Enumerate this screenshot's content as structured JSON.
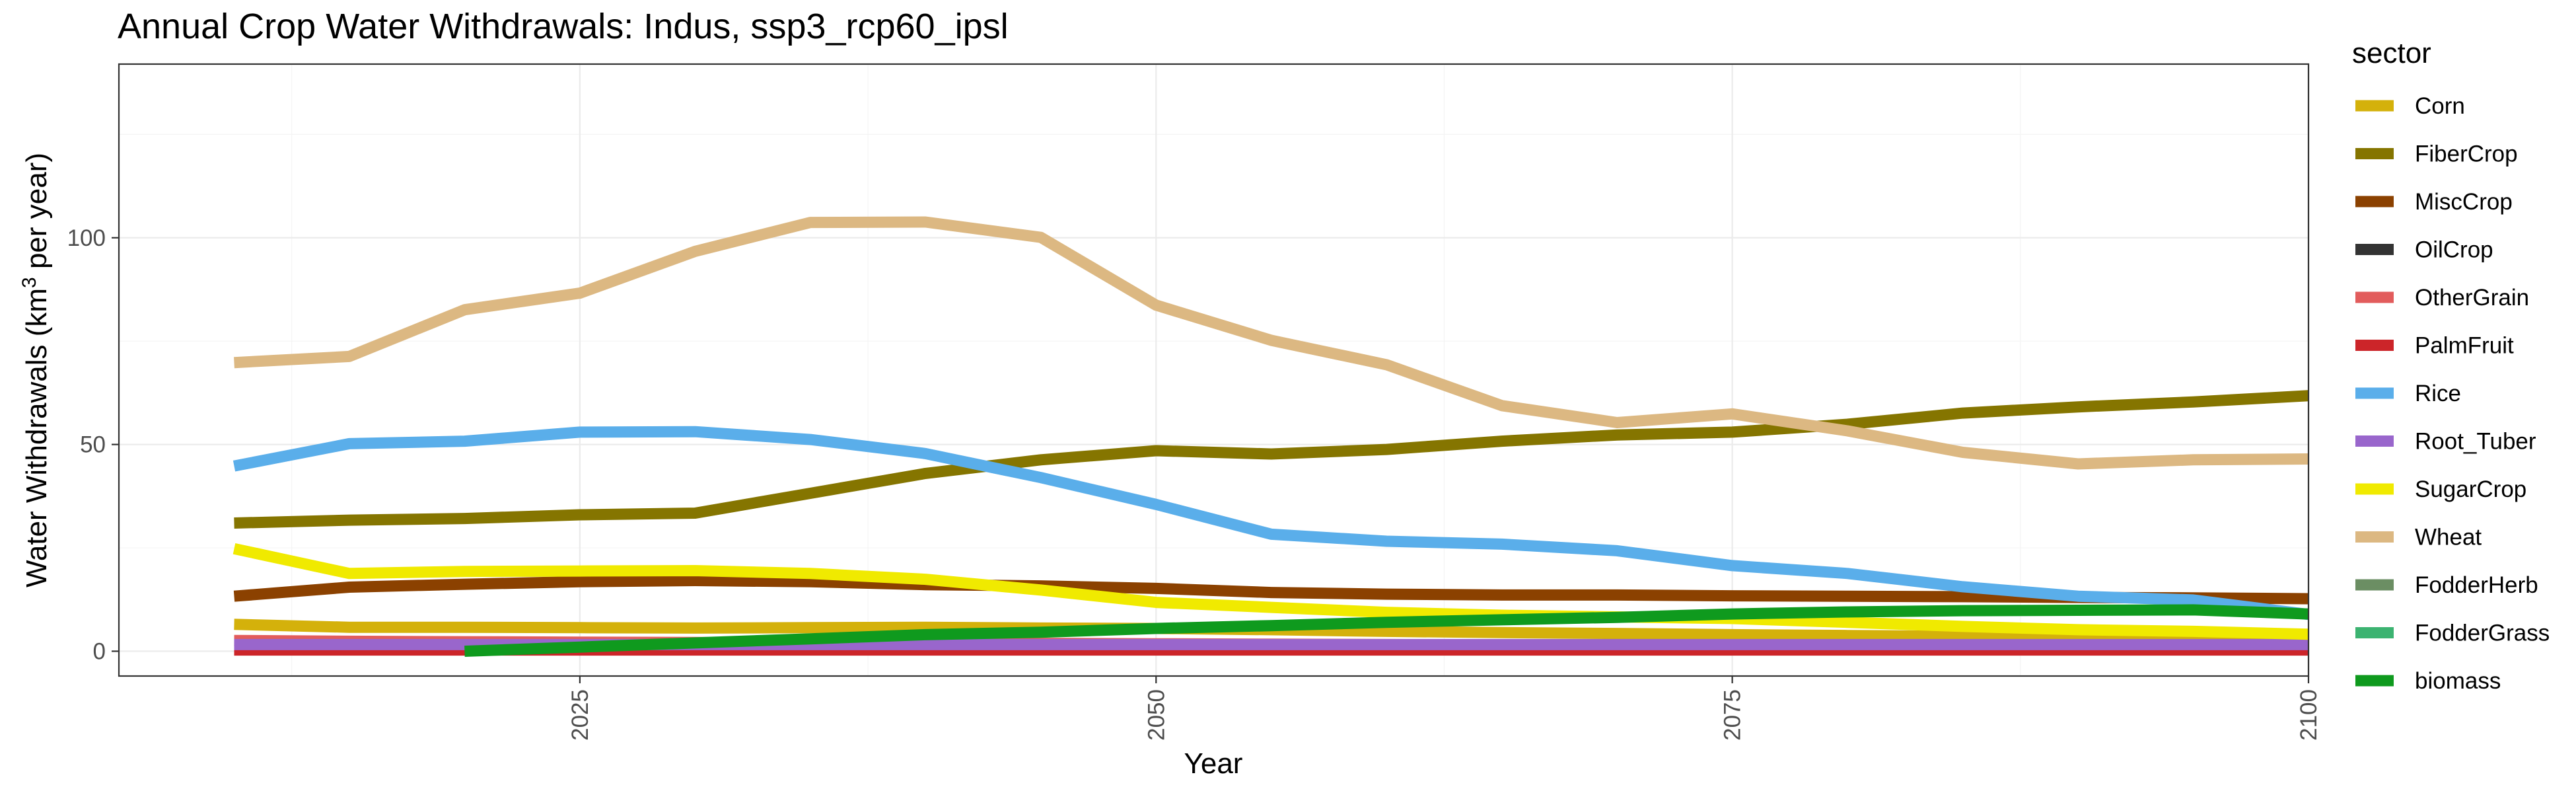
{
  "chart_data": {
    "type": "line",
    "title": "Annual Crop Water Withdrawals: Indus, ssp3_rcp60_ipsl",
    "xlabel": "Year",
    "ylabel_prefix": "Water Withdrawals (km",
    "ylabel_sup": "3",
    "ylabel_suffix": " per year)",
    "xlim": [
      2005,
      2100
    ],
    "ylim": [
      -6,
      142
    ],
    "x_ticks": [
      2025,
      2050,
      2075,
      2100
    ],
    "y_ticks": [
      0,
      50,
      100
    ],
    "grid": true,
    "legend_title": "sector",
    "legend_position": "right",
    "x": [
      2010,
      2015,
      2020,
      2025,
      2030,
      2035,
      2040,
      2045,
      2050,
      2055,
      2060,
      2065,
      2070,
      2075,
      2080,
      2085,
      2090,
      2095,
      2100
    ],
    "series": [
      {
        "name": "Corn",
        "color": "#d4b10b",
        "values": [
          6.5,
          5.8,
          5.8,
          5.7,
          5.6,
          5.7,
          5.8,
          5.6,
          5.5,
          5.2,
          4.8,
          4.5,
          4.3,
          4.0,
          3.8,
          3.6,
          3.5,
          3.4,
          3.3
        ]
      },
      {
        "name": "FiberCrop",
        "color": "#857500",
        "values": [
          31,
          31.7,
          32.1,
          33,
          33.4,
          38.2,
          43,
          46.3,
          48.5,
          47.7,
          48.8,
          50.8,
          52.3,
          53,
          54.9,
          57.6,
          59.1,
          60.3,
          61.8
        ]
      },
      {
        "name": "MiscCrop",
        "color": "#8b4100",
        "values": [
          13.3,
          15.5,
          16.2,
          16.8,
          17.1,
          16.8,
          16.1,
          15.8,
          15.2,
          14.2,
          13.8,
          13.6,
          13.6,
          13.4,
          13.3,
          13.2,
          13.0,
          12.9,
          12.7
        ]
      },
      {
        "name": "OilCrop",
        "color": "#333333",
        "values": [
          1.2,
          1.2,
          1.2,
          1.2,
          1.2,
          1.2,
          1.2,
          1.2,
          1.2,
          1.2,
          1.2,
          1.2,
          1.2,
          1.2,
          1.2,
          1.2,
          1.2,
          1.2,
          1.2
        ]
      },
      {
        "name": "OtherGrain",
        "color": "#e25c5c",
        "values": [
          2.6,
          2.4,
          2.3,
          2.2,
          2.1,
          2.0,
          2.0,
          1.9,
          1.8,
          1.7,
          1.6,
          1.5,
          1.4,
          1.3,
          1.2,
          1.1,
          1.0,
          0.9,
          0.8
        ]
      },
      {
        "name": "PalmFruit",
        "color": "#cc2529",
        "values": [
          0.3,
          0.3,
          0.3,
          0.3,
          0.3,
          0.3,
          0.3,
          0.3,
          0.3,
          0.3,
          0.3,
          0.3,
          0.3,
          0.3,
          0.3,
          0.3,
          0.3,
          0.3,
          0.3
        ]
      },
      {
        "name": "Rice",
        "color": "#5aaeea",
        "values": [
          44.8,
          50.2,
          50.8,
          53,
          53.1,
          51.2,
          47.8,
          42,
          35.5,
          28.3,
          26.6,
          25.9,
          24.3,
          20.7,
          18.8,
          15.6,
          13.3,
          12.4,
          8.9
        ]
      },
      {
        "name": "Root_Tuber",
        "color": "#9966cc",
        "values": [
          1.6,
          1.6,
          1.6,
          1.6,
          1.6,
          1.6,
          1.6,
          1.6,
          1.6,
          1.6,
          1.6,
          1.6,
          1.6,
          1.6,
          1.6,
          1.6,
          1.6,
          1.6,
          1.6
        ]
      },
      {
        "name": "SugarCrop",
        "color": "#f0ea00",
        "values": [
          24.8,
          18.8,
          19.3,
          19.4,
          19.5,
          18.8,
          17.4,
          14.8,
          11.8,
          10.6,
          9.4,
          8.7,
          8.3,
          7.9,
          7.0,
          6.0,
          5.2,
          4.8,
          4.1
        ]
      },
      {
        "name": "Wheat",
        "color": "#dcb882",
        "values": [
          69.8,
          71.3,
          82.6,
          86.6,
          96.7,
          103.7,
          103.8,
          100.1,
          83.7,
          75.2,
          69.3,
          59.4,
          55.3,
          57.4,
          53.3,
          48.1,
          45.3,
          46.3,
          46.5
        ]
      },
      {
        "name": "FodderHerb",
        "color": "#6b8e63",
        "values": [
          null,
          null,
          null,
          null,
          null,
          null,
          null,
          null,
          null,
          null,
          null,
          null,
          null,
          null,
          null,
          null,
          null,
          null,
          null
        ]
      },
      {
        "name": "FodderGrass",
        "color": "#3cb371",
        "values": [
          null,
          null,
          null,
          null,
          null,
          null,
          null,
          null,
          null,
          null,
          null,
          null,
          null,
          null,
          null,
          null,
          null,
          null,
          null
        ]
      },
      {
        "name": "biomass",
        "color": "#0f9a1e",
        "values": [
          null,
          null,
          0.0,
          1.0,
          2.0,
          3.0,
          4.0,
          4.6,
          5.5,
          6.2,
          7.0,
          7.6,
          8.2,
          9.0,
          9.5,
          9.8,
          9.9,
          10.0,
          9.0
        ]
      }
    ]
  }
}
